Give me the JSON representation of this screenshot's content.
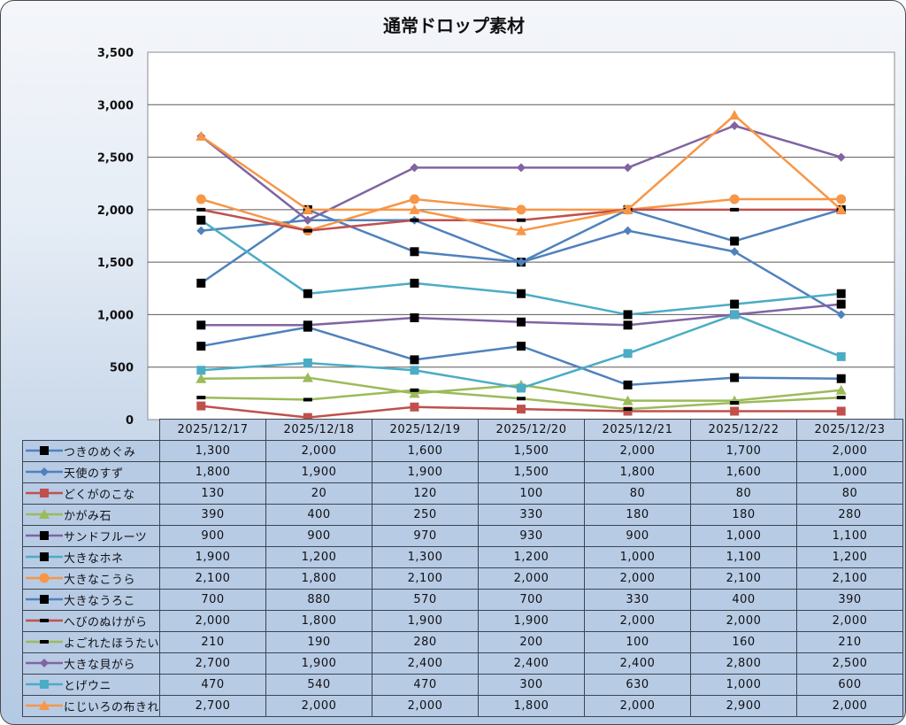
{
  "chart_data": {
    "type": "line",
    "title": "通常ドロップ素材",
    "xlabel": "",
    "ylabel": "",
    "ylim": [
      0,
      3500
    ],
    "yticks": [
      0,
      500,
      1000,
      1500,
      2000,
      2500,
      3000,
      3500
    ],
    "ytick_labels": [
      "0",
      "500",
      "1,000",
      "1,500",
      "2,000",
      "2,500",
      "3,000",
      "3,500"
    ],
    "grid": true,
    "legend": "data-table",
    "categories": [
      "2025/12/17",
      "2025/12/18",
      "2025/12/19",
      "2025/12/20",
      "2025/12/21",
      "2025/12/22",
      "2025/12/23"
    ],
    "series": [
      {
        "name": "つきのめぐみ",
        "color": "#4f81bd",
        "marker": "square",
        "marker_color": "#000000",
        "values": [
          1300,
          2000,
          1600,
          1500,
          2000,
          1700,
          2000
        ],
        "labels": [
          "1,300",
          "2,000",
          "1,600",
          "1,500",
          "2,000",
          "1,700",
          "2,000"
        ]
      },
      {
        "name": "天使のすず",
        "color": "#4f81bd",
        "marker": "diamond",
        "marker_color": "#4f81bd",
        "values": [
          1800,
          1900,
          1900,
          1500,
          1800,
          1600,
          1000
        ],
        "labels": [
          "1,800",
          "1,900",
          "1,900",
          "1,500",
          "1,800",
          "1,600",
          "1,000"
        ]
      },
      {
        "name": "どくがのこな",
        "color": "#c0504d",
        "marker": "square",
        "marker_color": "#c0504d",
        "values": [
          130,
          20,
          120,
          100,
          80,
          80,
          80
        ],
        "labels": [
          "130",
          "20",
          "120",
          "100",
          "80",
          "80",
          "80"
        ]
      },
      {
        "name": "かがみ石",
        "color": "#9bbb59",
        "marker": "triangle",
        "marker_color": "#9bbb59",
        "values": [
          390,
          400,
          250,
          330,
          180,
          180,
          280
        ],
        "labels": [
          "390",
          "400",
          "250",
          "330",
          "180",
          "180",
          "280"
        ]
      },
      {
        "name": "サンドフルーツ",
        "color": "#8064a2",
        "marker": "square",
        "marker_color": "#000000",
        "values": [
          900,
          900,
          970,
          930,
          900,
          1000,
          1100
        ],
        "labels": [
          "900",
          "900",
          "970",
          "930",
          "900",
          "1,000",
          "1,100"
        ]
      },
      {
        "name": "大きなホネ",
        "color": "#4bacc6",
        "marker": "square",
        "marker_color": "#000000",
        "values": [
          1900,
          1200,
          1300,
          1200,
          1000,
          1100,
          1200
        ],
        "labels": [
          "1,900",
          "1,200",
          "1,300",
          "1,200",
          "1,000",
          "1,100",
          "1,200"
        ]
      },
      {
        "name": "大きなこうら",
        "color": "#f79646",
        "marker": "circle",
        "marker_color": "#f79646",
        "values": [
          2100,
          1800,
          2100,
          2000,
          2000,
          2100,
          2100
        ],
        "labels": [
          "2,100",
          "1,800",
          "2,100",
          "2,000",
          "2,000",
          "2,100",
          "2,100"
        ]
      },
      {
        "name": "大きなうろこ",
        "color": "#4f81bd",
        "marker": "square",
        "marker_color": "#000000",
        "values": [
          700,
          880,
          570,
          700,
          330,
          400,
          390
        ],
        "labels": [
          "700",
          "880",
          "570",
          "700",
          "330",
          "400",
          "390"
        ]
      },
      {
        "name": "へびのぬけがら",
        "color": "#c0504d",
        "marker": "dash",
        "marker_color": "#000000",
        "values": [
          2000,
          1800,
          1900,
          1900,
          2000,
          2000,
          2000
        ],
        "labels": [
          "2,000",
          "1,800",
          "1,900",
          "1,900",
          "2,000",
          "2,000",
          "2,000"
        ]
      },
      {
        "name": "よごれたほうたい",
        "color": "#9bbb59",
        "marker": "dash",
        "marker_color": "#000000",
        "values": [
          210,
          190,
          280,
          200,
          100,
          160,
          210
        ],
        "labels": [
          "210",
          "190",
          "280",
          "200",
          "100",
          "160",
          "210"
        ]
      },
      {
        "name": "大きな貝がら",
        "color": "#8064a2",
        "marker": "diamond",
        "marker_color": "#8064a2",
        "values": [
          2700,
          1900,
          2400,
          2400,
          2400,
          2800,
          2500
        ],
        "labels": [
          "2,700",
          "1,900",
          "2,400",
          "2,400",
          "2,400",
          "2,800",
          "2,500"
        ]
      },
      {
        "name": "とげウニ",
        "color": "#4bacc6",
        "marker": "square",
        "marker_color": "#4bacc6",
        "values": [
          470,
          540,
          470,
          300,
          630,
          1000,
          600
        ],
        "labels": [
          "470",
          "540",
          "470",
          "300",
          "630",
          "1,000",
          "600"
        ]
      },
      {
        "name": "にじいろの布きれ",
        "color": "#f79646",
        "marker": "triangle",
        "marker_color": "#f79646",
        "values": [
          2700,
          2000,
          2000,
          1800,
          2000,
          2900,
          2000
        ],
        "labels": [
          "2,700",
          "2,000",
          "2,000",
          "1,800",
          "2,000",
          "2,900",
          "2,000"
        ]
      }
    ]
  }
}
